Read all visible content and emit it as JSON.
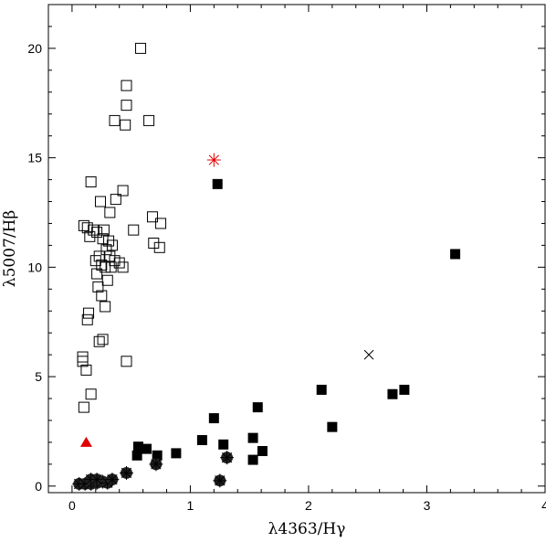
{
  "chart_data": {
    "type": "scatter",
    "title": "",
    "xlabel": "λ4363/Hγ",
    "ylabel": "λ5007/Hβ",
    "xlim": [
      -0.2,
      4.0
    ],
    "ylim": [
      -0.3,
      22.0
    ],
    "xticks": [
      0,
      1,
      2,
      3,
      4
    ],
    "yticks": [
      0,
      5,
      10,
      15,
      20
    ],
    "xtick_labels": [
      "0",
      "1",
      "2",
      "3",
      "4"
    ],
    "ytick_labels": [
      "0",
      "5",
      "10",
      "15",
      "20"
    ],
    "grid": false,
    "legend": "none",
    "series": [
      {
        "marker": "open-square",
        "color": "#000000",
        "points": [
          [
            0.58,
            20.0
          ],
          [
            0.46,
            18.3
          ],
          [
            0.46,
            17.4
          ],
          [
            0.36,
            16.7
          ],
          [
            0.45,
            16.5
          ],
          [
            0.65,
            16.7
          ],
          [
            0.16,
            13.9
          ],
          [
            0.43,
            13.5
          ],
          [
            0.24,
            13.0
          ],
          [
            0.37,
            13.1
          ],
          [
            0.32,
            12.5
          ],
          [
            0.68,
            12.3
          ],
          [
            0.75,
            12.0
          ],
          [
            0.13,
            11.8
          ],
          [
            0.1,
            11.9
          ],
          [
            0.18,
            11.7
          ],
          [
            0.21,
            11.6
          ],
          [
            0.27,
            11.7
          ],
          [
            0.52,
            11.7
          ],
          [
            0.15,
            11.4
          ],
          [
            0.26,
            11.3
          ],
          [
            0.31,
            11.2
          ],
          [
            0.69,
            11.1
          ],
          [
            0.74,
            10.9
          ],
          [
            0.34,
            11.0
          ],
          [
            0.29,
            10.8
          ],
          [
            0.23,
            10.5
          ],
          [
            0.32,
            10.5
          ],
          [
            0.2,
            10.3
          ],
          [
            0.36,
            10.3
          ],
          [
            0.4,
            10.2
          ],
          [
            0.25,
            10.1
          ],
          [
            0.28,
            10.0
          ],
          [
            0.33,
            10.0
          ],
          [
            0.43,
            10.0
          ],
          [
            0.21,
            9.7
          ],
          [
            0.3,
            9.4
          ],
          [
            0.22,
            9.1
          ],
          [
            0.25,
            8.7
          ],
          [
            0.28,
            8.2
          ],
          [
            0.14,
            7.9
          ],
          [
            0.13,
            7.6
          ],
          [
            0.26,
            6.7
          ],
          [
            0.23,
            6.6
          ],
          [
            0.46,
            5.7
          ],
          [
            0.09,
            5.9
          ],
          [
            0.09,
            5.7
          ],
          [
            0.12,
            5.3
          ],
          [
            0.16,
            4.2
          ],
          [
            0.1,
            3.6
          ]
        ]
      },
      {
        "marker": "filled-square",
        "color": "#000000",
        "points": [
          [
            1.23,
            13.8
          ],
          [
            3.24,
            10.6
          ],
          [
            2.11,
            4.4
          ],
          [
            2.81,
            4.4
          ],
          [
            2.71,
            4.2
          ],
          [
            1.57,
            3.6
          ],
          [
            1.2,
            3.1
          ],
          [
            2.2,
            2.7
          ],
          [
            1.53,
            2.2
          ],
          [
            1.1,
            2.1
          ],
          [
            0.56,
            1.8
          ],
          [
            0.63,
            1.7
          ],
          [
            1.28,
            1.9
          ],
          [
            1.61,
            1.6
          ],
          [
            0.88,
            1.5
          ],
          [
            0.72,
            1.4
          ],
          [
            0.55,
            1.4
          ],
          [
            1.53,
            1.2
          ]
        ]
      },
      {
        "marker": "filled-circle-star",
        "color": "#000000",
        "points": [
          [
            0.06,
            0.1
          ],
          [
            0.11,
            0.1
          ],
          [
            0.16,
            0.1
          ],
          [
            0.21,
            0.15
          ],
          [
            0.26,
            0.2
          ],
          [
            0.16,
            0.3
          ],
          [
            0.21,
            0.3
          ],
          [
            0.3,
            0.15
          ],
          [
            0.34,
            0.3
          ],
          [
            0.46,
            0.6
          ],
          [
            0.71,
            1.0
          ],
          [
            1.31,
            1.3
          ],
          [
            1.25,
            0.25
          ]
        ]
      },
      {
        "marker": "red-asterisk",
        "color": "#e00000",
        "points": [
          [
            1.2,
            14.9
          ]
        ]
      },
      {
        "marker": "red-triangle",
        "color": "#e00000",
        "points": [
          [
            0.12,
            2.0
          ]
        ]
      },
      {
        "marker": "cross",
        "color": "#000000",
        "points": [
          [
            2.51,
            6.0
          ]
        ]
      }
    ]
  }
}
